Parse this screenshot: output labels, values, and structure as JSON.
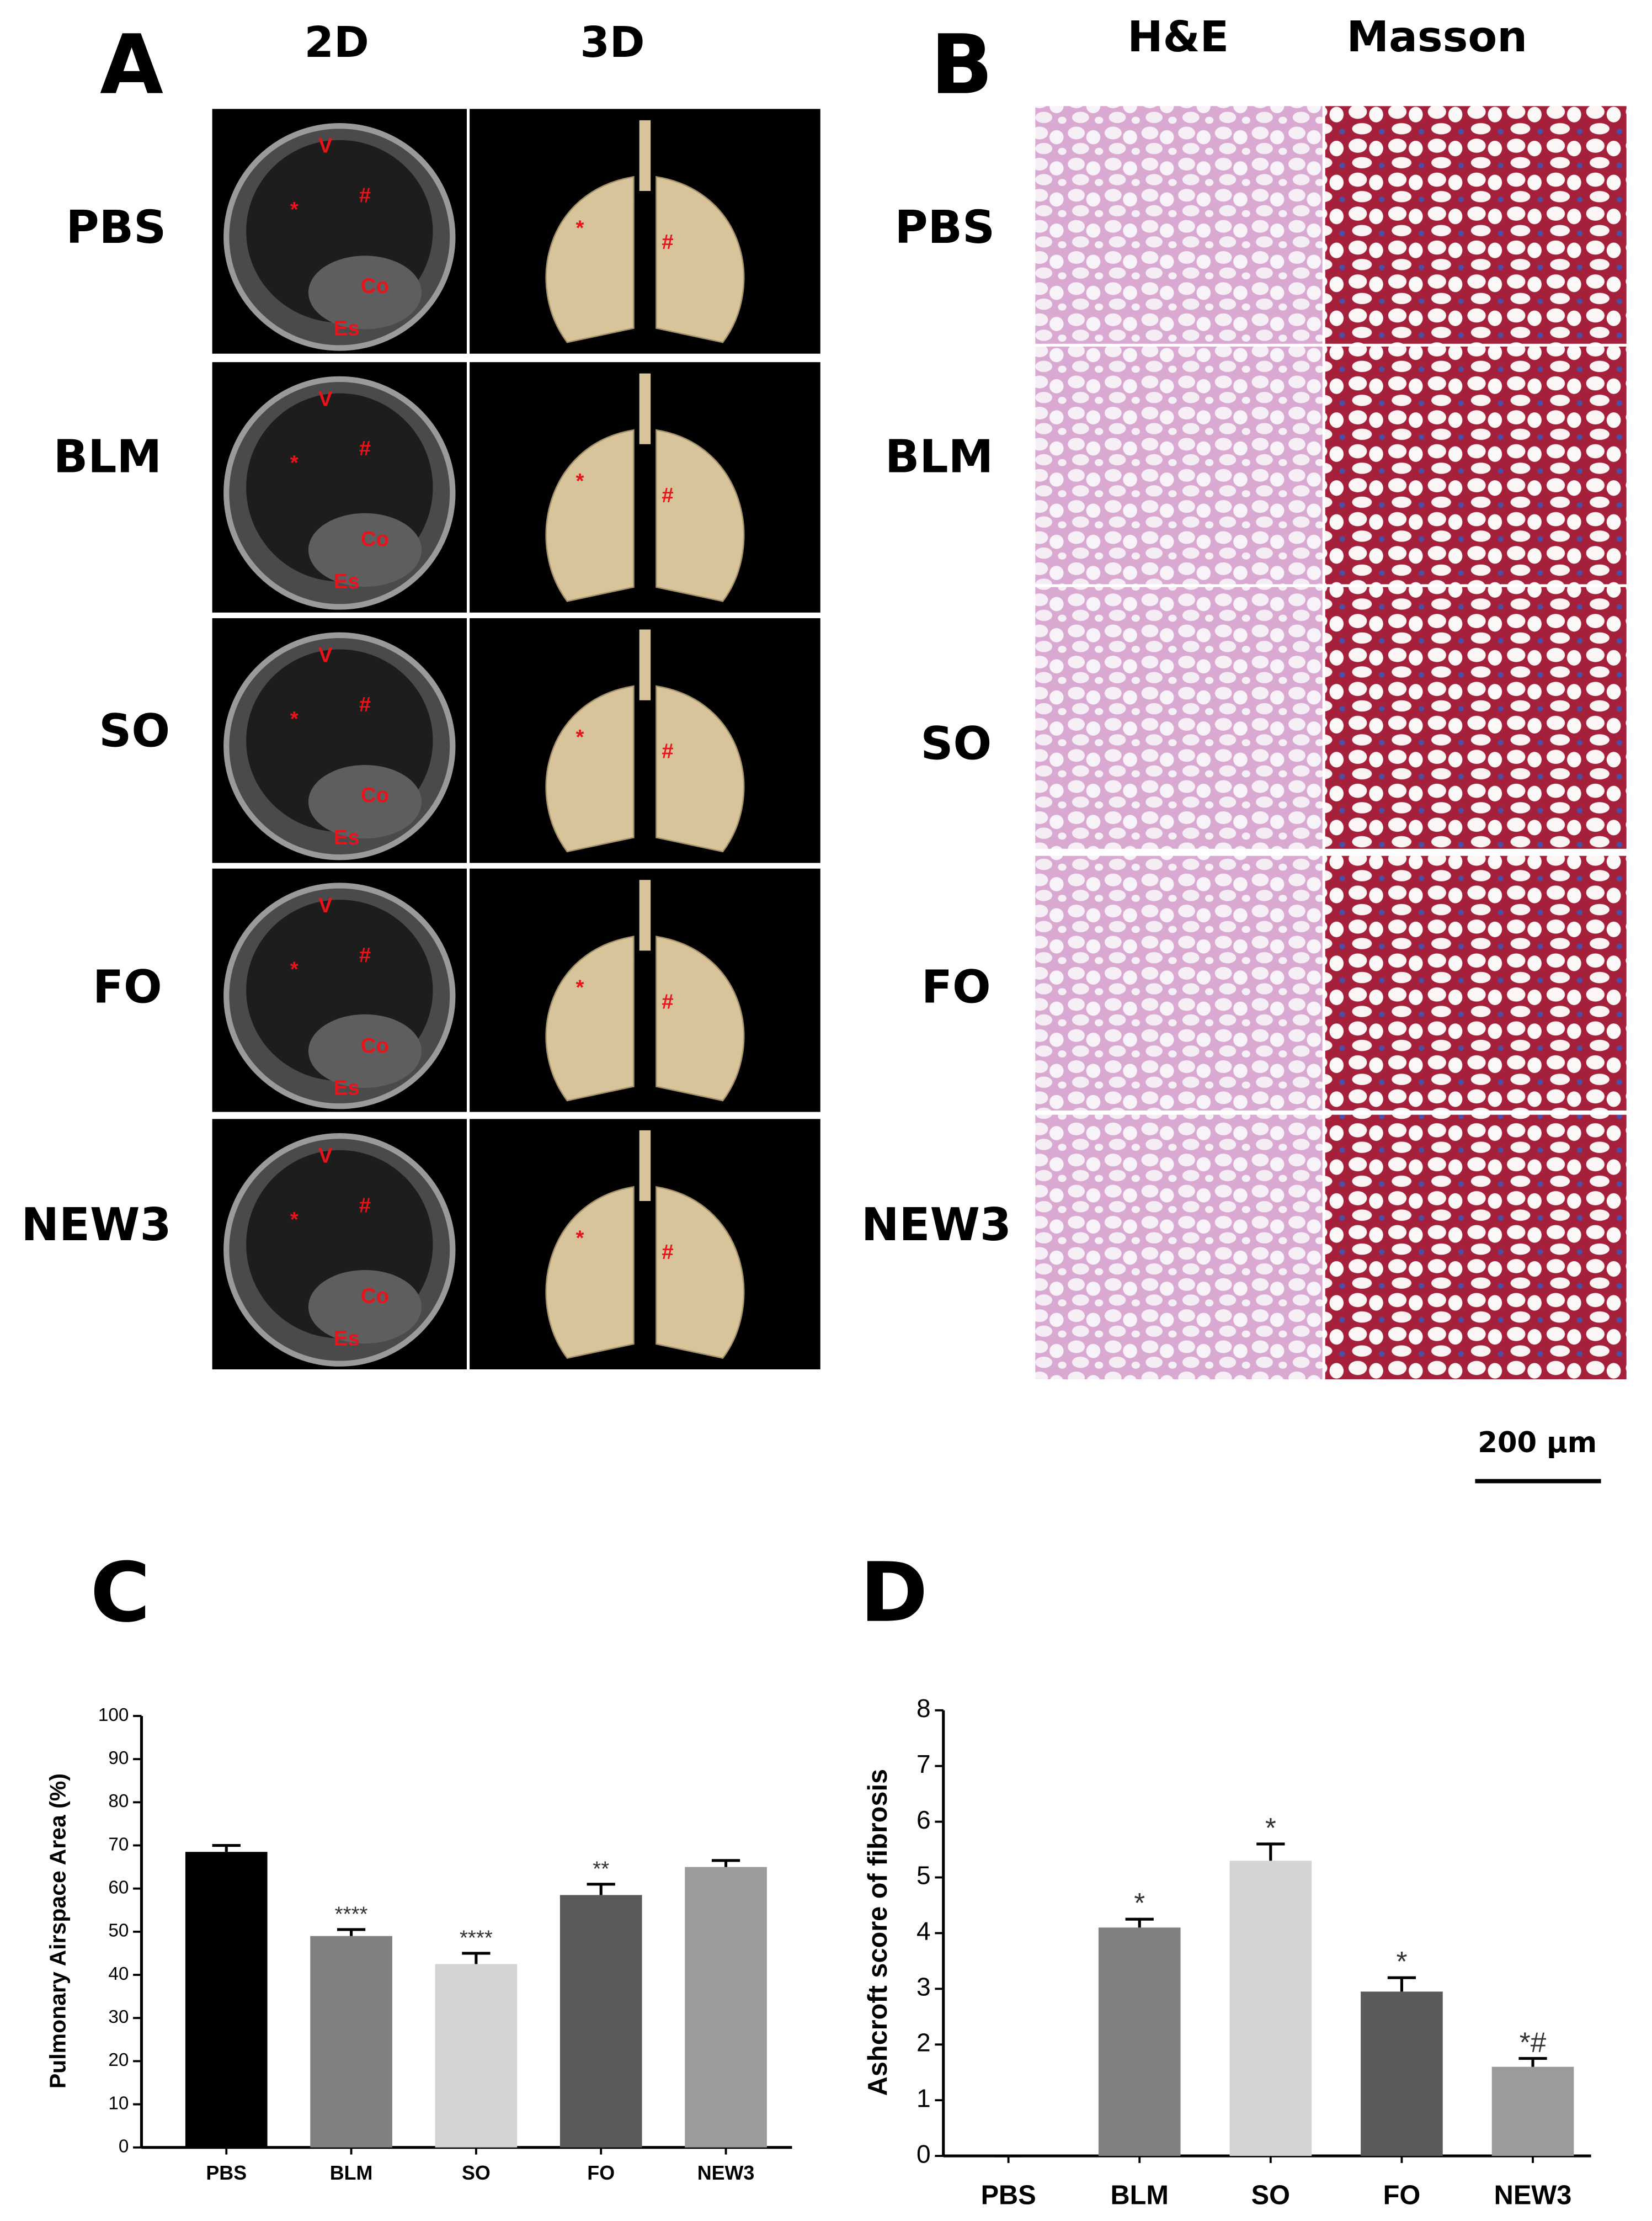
{
  "panel_a": {
    "letter": "A",
    "columns": [
      "2D",
      "3D"
    ],
    "rows": [
      "PBS",
      "BLM",
      "SO",
      "FO",
      "NEW3"
    ],
    "ct_labels": [
      "V",
      "*",
      "#",
      "Co",
      "Es"
    ],
    "render_labels": [
      "*",
      "#"
    ]
  },
  "panel_b": {
    "letter": "B",
    "columns": [
      "H&E",
      "Masson"
    ],
    "rows": [
      "PBS",
      "BLM",
      "SO",
      "FO",
      "NEW3"
    ],
    "scale_bar": "200 µm"
  },
  "chart_data": [
    {
      "type": "bar",
      "title": "C",
      "y_label": "Pulmonary Airspace Area (%)",
      "categories": [
        "PBS",
        "BLM",
        "SO",
        "FO",
        "NEW3"
      ],
      "values": [
        68.5,
        49,
        42.5,
        58.5,
        65
      ],
      "errors": [
        1.5,
        1.5,
        2.5,
        2.5,
        1.5
      ],
      "annotations": [
        null,
        "****",
        "****",
        "**",
        null
      ],
      "colors": [
        "#000000",
        "#808080",
        "#d4d4d4",
        "#5a5a5a",
        "#9b9b9b"
      ],
      "ylim": [
        0,
        100
      ],
      "yticks": [
        0,
        10,
        20,
        30,
        40,
        50,
        60,
        70,
        80,
        90,
        100
      ]
    },
    {
      "type": "bar",
      "title": "D",
      "y_label": "Ashcroft score of fibrosis",
      "categories": [
        "PBS",
        "BLM",
        "SO",
        "FO",
        "NEW3"
      ],
      "values": [
        0,
        4.1,
        5.3,
        2.95,
        1.6
      ],
      "errors": [
        0,
        0.15,
        0.3,
        0.25,
        0.15
      ],
      "annotations": [
        null,
        "*",
        "*",
        "*",
        "*#"
      ],
      "colors": [
        "#000000",
        "#808080",
        "#d4d4d4",
        "#5a5a5a",
        "#9b9b9b"
      ],
      "ylim": [
        0,
        8
      ],
      "yticks": [
        0,
        1,
        2,
        3,
        4,
        5,
        6,
        7,
        8
      ]
    }
  ]
}
